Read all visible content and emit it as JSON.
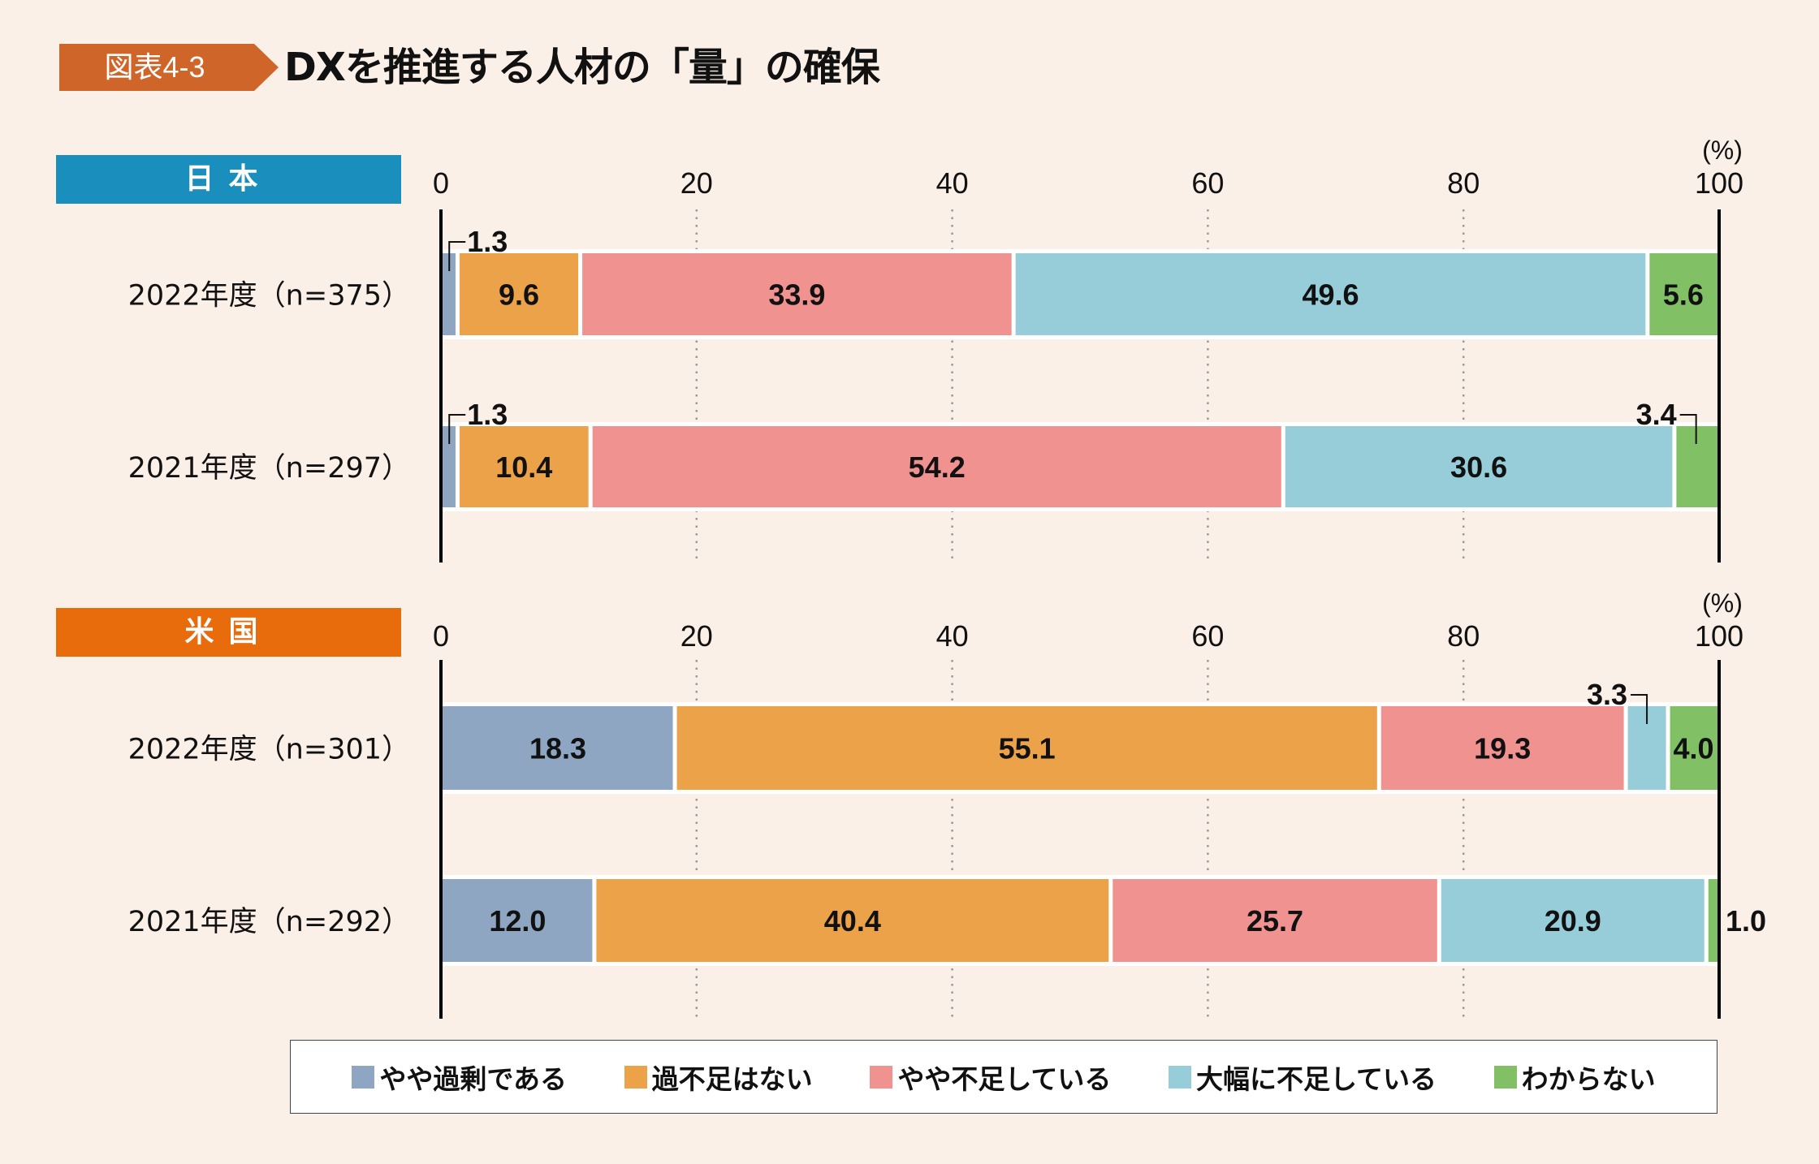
{
  "figure_label": "図表4-3",
  "title": "DXを推進する人材の「量」の確保",
  "colors": {
    "background": "#fbf0e8",
    "badge": "#d0652a",
    "japan_header": "#1a8fbd",
    "us_header": "#e86c0c"
  },
  "chart_data": {
    "type": "bar",
    "orientation": "horizontal",
    "stacked": true,
    "title": "DXを推進する人材の「量」の確保",
    "unit_label": "(%)",
    "xlim": [
      0,
      100
    ],
    "ticks": [
      "0",
      "20",
      "40",
      "60",
      "80",
      "100"
    ],
    "tick_values": [
      0,
      20,
      40,
      60,
      80,
      100
    ],
    "grid": "dotted vertical",
    "legend_position": "bottom",
    "categories_series": [
      {
        "name": "やや過剰である",
        "color": "#8ea6c1"
      },
      {
        "name": "過不足はない",
        "color": "#eba249"
      },
      {
        "name": "やや不足している",
        "color": "#ef9290"
      },
      {
        "name": "大幅に不足している",
        "color": "#97cdd9"
      },
      {
        "name": "わからない",
        "color": "#82c066"
      }
    ],
    "panels": [
      {
        "name": "日本",
        "rows": [
          {
            "label": "2022年度（n=375）",
            "values": [
              1.3,
              9.6,
              33.9,
              49.6,
              5.6
            ],
            "labels": [
              "1.3",
              "9.6",
              "33.9",
              "49.6",
              "5.6"
            ],
            "callouts": [
              0
            ]
          },
          {
            "label": "2021年度（n=297）",
            "values": [
              1.3,
              10.4,
              54.2,
              30.6,
              3.4
            ],
            "labels": [
              "1.3",
              "10.4",
              "54.2",
              "30.6",
              "3.4"
            ],
            "callouts": [
              0,
              4
            ]
          }
        ]
      },
      {
        "name": "米国",
        "rows": [
          {
            "label": "2022年度（n=301）",
            "values": [
              18.3,
              55.1,
              19.3,
              3.3,
              4.0
            ],
            "labels": [
              "18.3",
              "55.1",
              "19.3",
              "3.3",
              "4.0"
            ],
            "callouts": [
              3
            ]
          },
          {
            "label": "2021年度（n=292）",
            "values": [
              12.0,
              40.4,
              25.7,
              20.9,
              1.0
            ],
            "labels": [
              "12.0",
              "40.4",
              "25.7",
              "20.9",
              "1.0"
            ],
            "callouts": [
              4
            ]
          }
        ]
      }
    ]
  },
  "legend": [
    {
      "label": "やや過剰である",
      "color": "#8ea6c1"
    },
    {
      "label": "過不足はない",
      "color": "#eba249"
    },
    {
      "label": "やや不足している",
      "color": "#ef9290"
    },
    {
      "label": "大幅に不足している",
      "color": "#97cdd9"
    },
    {
      "label": "わからない",
      "color": "#82c066"
    }
  ]
}
